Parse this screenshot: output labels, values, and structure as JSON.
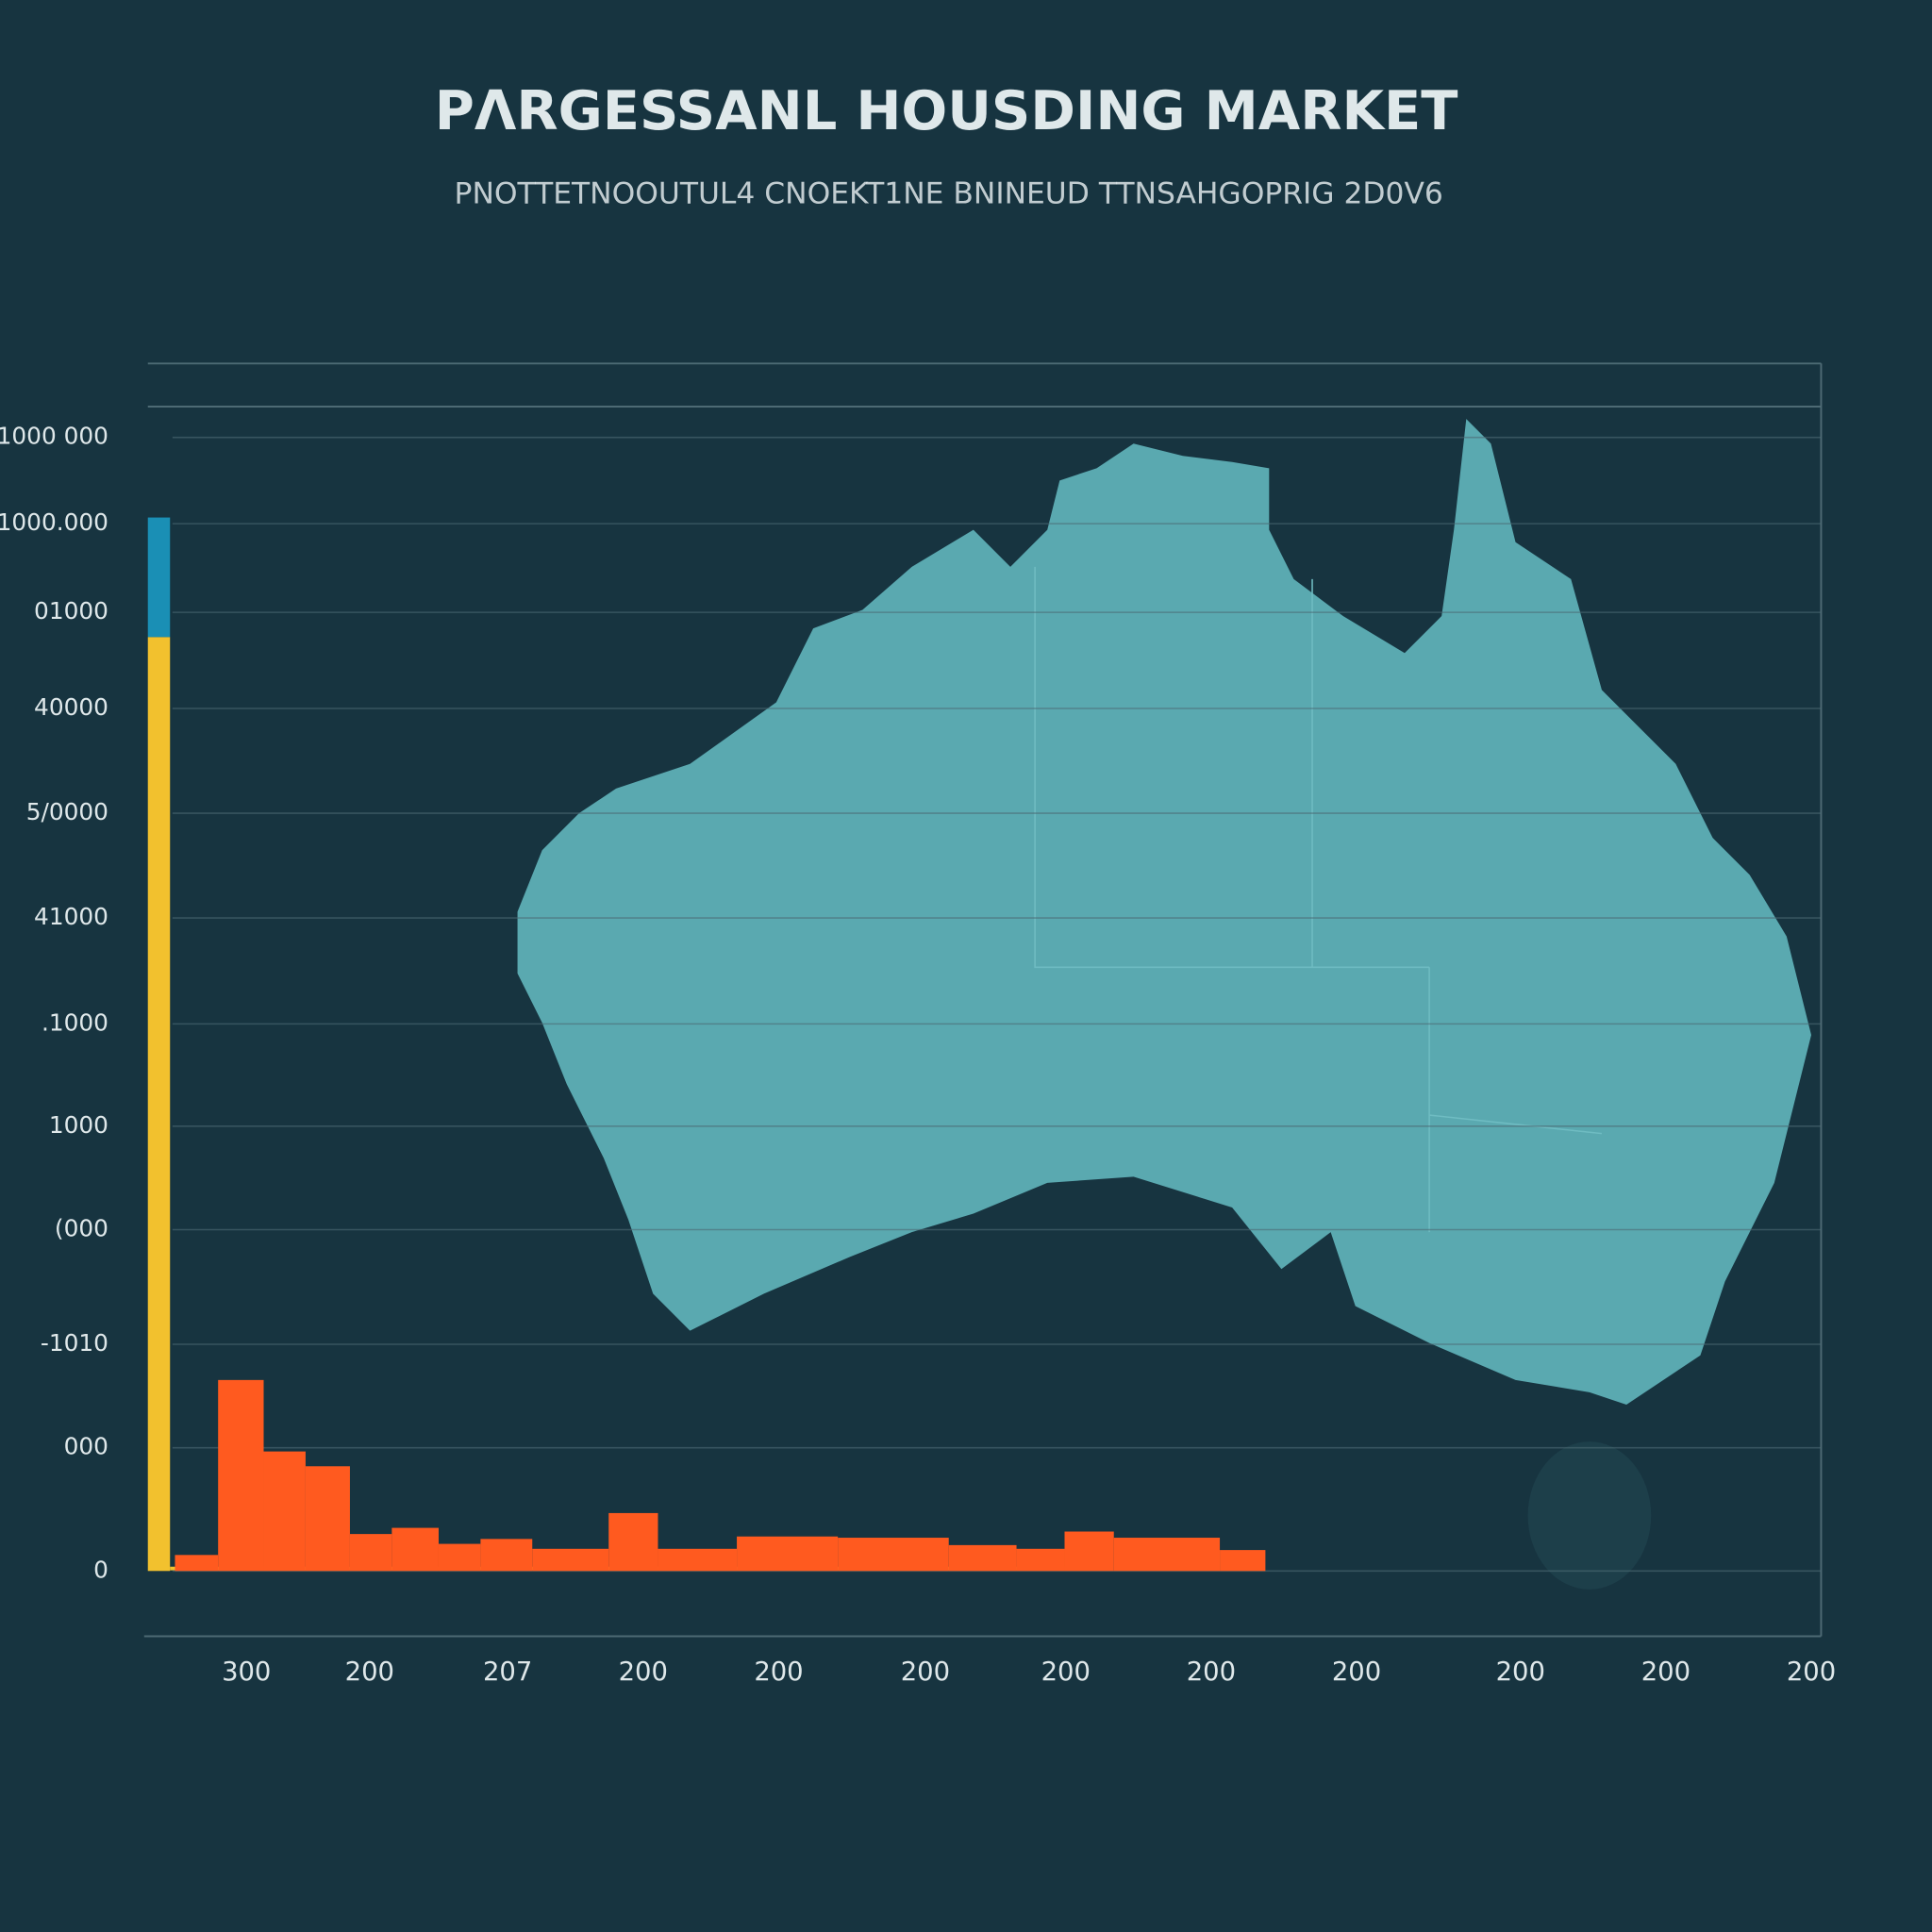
{
  "chart_data": {
    "type": "histogram",
    "title": "PΛRGESSANL HOUSDING MARKET",
    "subtitle": "PNOTTETNOOUTUL4 CNOEKT1NE BNINEUD TTNSAHGOPRIG 2D0V6",
    "bins": [
      142,
      177,
      214,
      248,
      284,
      318,
      356,
      390,
      432,
      494,
      534,
      598,
      680,
      770,
      825,
      864,
      904,
      990,
      1027
    ],
    "values": [
      13,
      155,
      97,
      85,
      30,
      35,
      22,
      26,
      18,
      47,
      18,
      28,
      27,
      21,
      18,
      32,
      27,
      17
    ],
    "color": "#ff5a1f",
    "stack_bins": [
      120,
      138
    ],
    "stack_values": [
      758,
      97
    ],
    "stack_colors": [
      "#f2c12e",
      "#1a8fb5"
    ],
    "xlim": [
      120,
      1478
    ],
    "xticks": [
      {
        "value": 200,
        "label": "300"
      },
      {
        "value": 300,
        "label": "200"
      },
      {
        "value": 412,
        "label": "207"
      },
      {
        "value": 522,
        "label": "200"
      },
      {
        "value": 632,
        "label": "200"
      },
      {
        "value": 751,
        "label": "200"
      },
      {
        "value": 865,
        "label": "200"
      },
      {
        "value": 983,
        "label": "200"
      },
      {
        "value": 1101,
        "label": "200"
      },
      {
        "value": 1234,
        "label": "200"
      },
      {
        "value": 1352,
        "label": "200"
      },
      {
        "value": 1470,
        "label": "200"
      }
    ],
    "ylim": [
      0,
      945
    ],
    "yticks": [
      0,
      {
        "value": 100,
        "label": "000"
      },
      {
        "value": 184,
        "label": "-1010"
      },
      {
        "value": 277,
        "label": "(000"
      },
      {
        "value": 361,
        "label": "1000"
      },
      {
        "value": 444,
        "label": ".1000"
      },
      {
        "value": 530,
        "label": "41000"
      },
      {
        "value": 615,
        "label": "5/0000"
      },
      {
        "value": 700,
        "label": "40000"
      },
      {
        "value": 778,
        "label": "01000"
      },
      {
        "value": 850,
        "label": "1000.000"
      },
      {
        "value": 920,
        "label": "1000 000"
      }
    ],
    "grid": true
  }
}
